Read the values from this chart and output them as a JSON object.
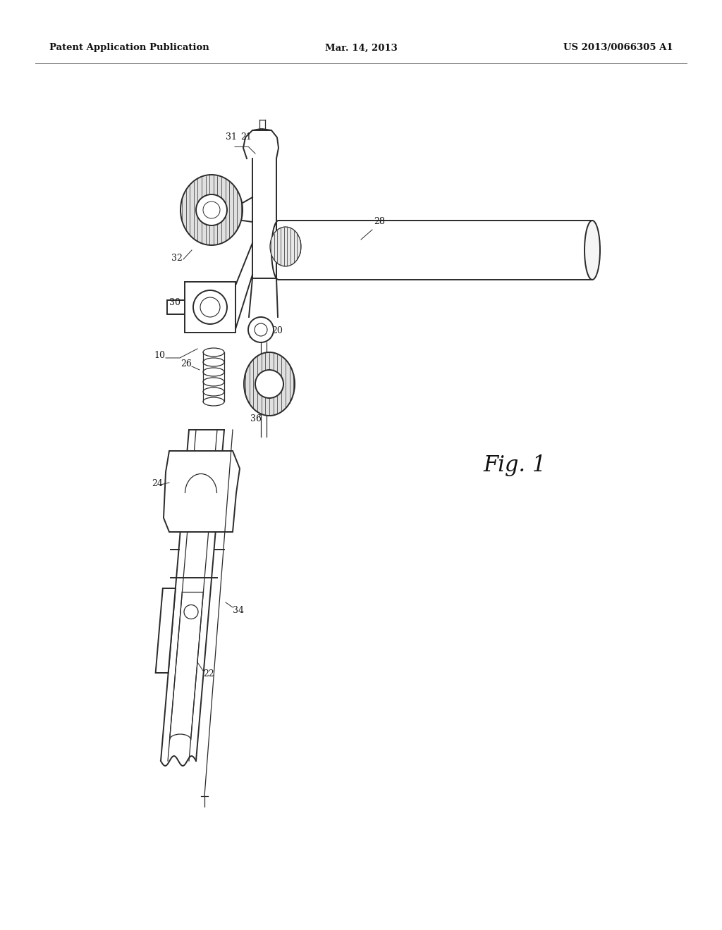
{
  "background_color": "#ffffff",
  "header_left": "Patent Application Publication",
  "header_center": "Mar. 14, 2013",
  "header_right": "US 2013/0066305 A1",
  "fig_label": "Fig. 1",
  "line_color": "#2a2a2a",
  "label_color": "#1a1a1a",
  "header_fontsize": 9.5,
  "label_fontsize": 9,
  "figlabel_fontsize": 22
}
